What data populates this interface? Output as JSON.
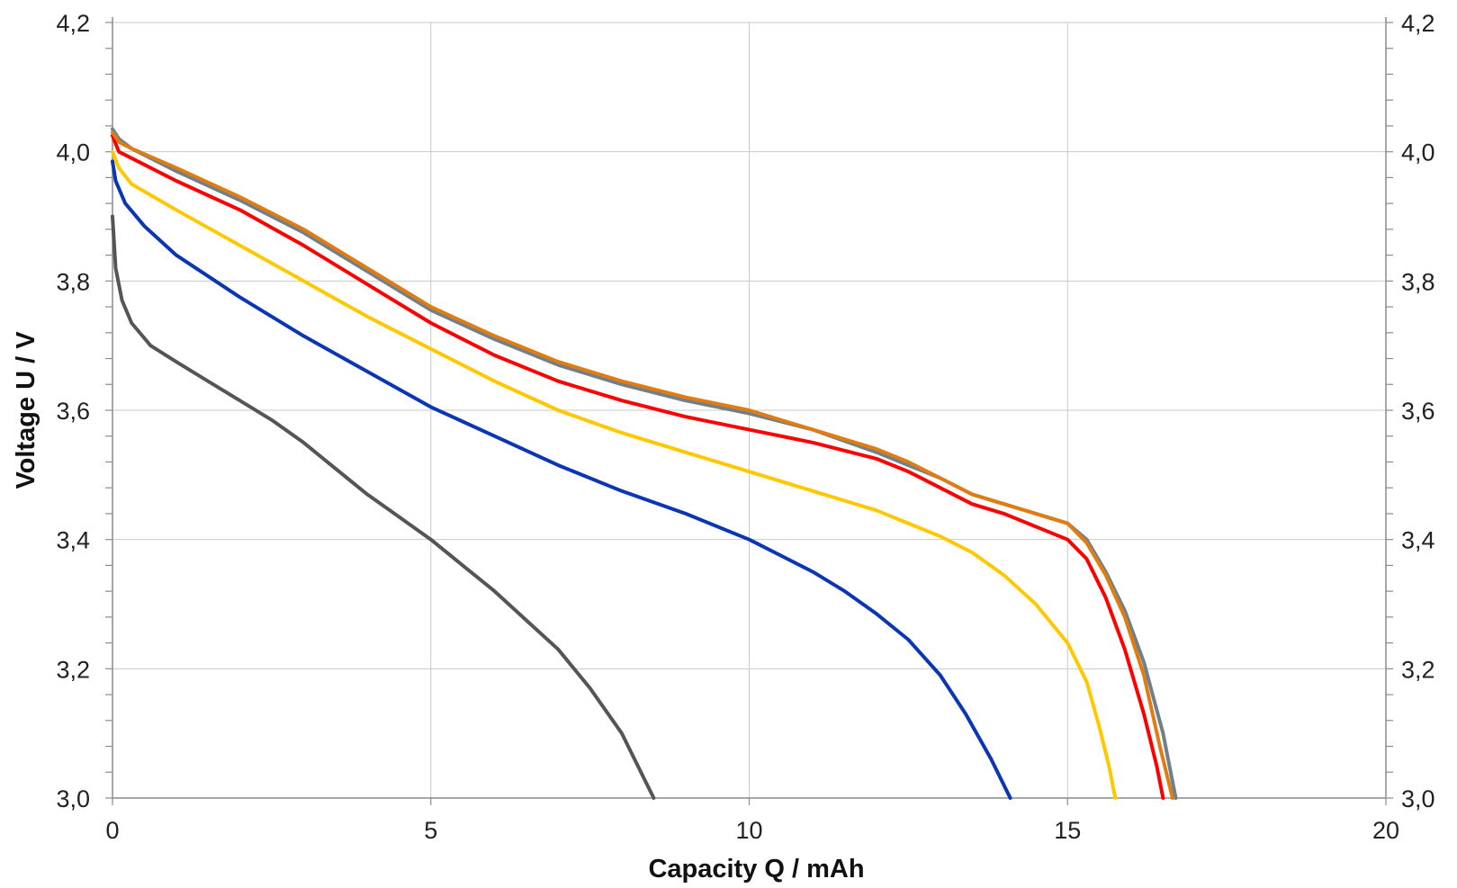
{
  "chart_data": {
    "type": "line",
    "title": "",
    "xlabel": "Capacity Q / mAh",
    "ylabel": "Voltage U / V",
    "xlim": [
      0,
      20
    ],
    "ylim": [
      3.0,
      4.2
    ],
    "x_ticks": [
      0,
      5,
      10,
      15,
      20
    ],
    "x_tick_labels": [
      "0",
      "5",
      "10",
      "15",
      "20"
    ],
    "y_ticks": [
      3.0,
      3.2,
      3.4,
      3.6,
      3.8,
      4.0,
      4.2
    ],
    "y_tick_labels": [
      "3,0",
      "3,2",
      "3,4",
      "3,6",
      "3,8",
      "4,0",
      "4,2"
    ],
    "y_minor_step": 0.04,
    "right_axis_mirrored": true,
    "grid": true,
    "legend": "none",
    "series": [
      {
        "color": "#555555",
        "points": [
          [
            0,
            3.9
          ],
          [
            0.05,
            3.82
          ],
          [
            0.15,
            3.77
          ],
          [
            0.3,
            3.735
          ],
          [
            0.6,
            3.7
          ],
          [
            1,
            3.675
          ],
          [
            1.5,
            3.645
          ],
          [
            2,
            3.615
          ],
          [
            2.5,
            3.585
          ],
          [
            3,
            3.55
          ],
          [
            3.5,
            3.51
          ],
          [
            4,
            3.47
          ],
          [
            4.5,
            3.435
          ],
          [
            5,
            3.4
          ],
          [
            5.5,
            3.36
          ],
          [
            6,
            3.32
          ],
          [
            6.5,
            3.275
          ],
          [
            7,
            3.23
          ],
          [
            7.5,
            3.17
          ],
          [
            8,
            3.1
          ],
          [
            8.3,
            3.04
          ],
          [
            8.5,
            3.0
          ]
        ]
      },
      {
        "color": "#0a36b5",
        "points": [
          [
            0,
            3.985
          ],
          [
            0.05,
            3.955
          ],
          [
            0.2,
            3.92
          ],
          [
            0.5,
            3.885
          ],
          [
            1,
            3.84
          ],
          [
            2,
            3.775
          ],
          [
            3,
            3.715
          ],
          [
            4,
            3.66
          ],
          [
            5,
            3.605
          ],
          [
            6,
            3.56
          ],
          [
            7,
            3.515
          ],
          [
            8,
            3.475
          ],
          [
            9,
            3.44
          ],
          [
            10,
            3.4
          ],
          [
            10.5,
            3.375
          ],
          [
            11,
            3.35
          ],
          [
            11.5,
            3.32
          ],
          [
            12,
            3.285
          ],
          [
            12.5,
            3.245
          ],
          [
            13,
            3.19
          ],
          [
            13.4,
            3.13
          ],
          [
            13.8,
            3.06
          ],
          [
            14.1,
            3.0
          ]
        ]
      },
      {
        "color": "#ffc800",
        "points": [
          [
            0,
            4.0
          ],
          [
            0.1,
            3.975
          ],
          [
            0.3,
            3.95
          ],
          [
            1,
            3.91
          ],
          [
            2,
            3.855
          ],
          [
            3,
            3.8
          ],
          [
            4,
            3.745
          ],
          [
            5,
            3.695
          ],
          [
            6,
            3.645
          ],
          [
            7,
            3.6
          ],
          [
            8,
            3.565
          ],
          [
            9,
            3.535
          ],
          [
            10,
            3.505
          ],
          [
            11,
            3.475
          ],
          [
            12,
            3.445
          ],
          [
            13,
            3.405
          ],
          [
            13.5,
            3.38
          ],
          [
            14,
            3.345
          ],
          [
            14.5,
            3.3
          ],
          [
            15,
            3.24
          ],
          [
            15.3,
            3.18
          ],
          [
            15.5,
            3.11
          ],
          [
            15.65,
            3.05
          ],
          [
            15.75,
            3.0
          ]
        ]
      },
      {
        "color": "#ff0000",
        "points": [
          [
            0,
            4.025
          ],
          [
            0.1,
            4.0
          ],
          [
            0.3,
            3.99
          ],
          [
            1,
            3.955
          ],
          [
            2,
            3.91
          ],
          [
            3,
            3.855
          ],
          [
            4,
            3.795
          ],
          [
            5,
            3.735
          ],
          [
            6,
            3.685
          ],
          [
            7,
            3.645
          ],
          [
            8,
            3.615
          ],
          [
            9,
            3.59
          ],
          [
            10,
            3.57
          ],
          [
            11,
            3.55
          ],
          [
            12,
            3.525
          ],
          [
            12.5,
            3.505
          ],
          [
            13,
            3.48
          ],
          [
            13.5,
            3.455
          ],
          [
            14,
            3.44
          ],
          [
            14.5,
            3.42
          ],
          [
            15,
            3.4
          ],
          [
            15.3,
            3.37
          ],
          [
            15.6,
            3.31
          ],
          [
            15.9,
            3.23
          ],
          [
            16.2,
            3.13
          ],
          [
            16.4,
            3.05
          ],
          [
            16.5,
            3.0
          ]
        ]
      },
      {
        "color": "#6e7f8d",
        "points": [
          [
            0,
            4.035
          ],
          [
            0.1,
            4.02
          ],
          [
            0.3,
            4.005
          ],
          [
            1,
            3.97
          ],
          [
            2,
            3.925
          ],
          [
            3,
            3.875
          ],
          [
            4,
            3.815
          ],
          [
            5,
            3.755
          ],
          [
            6,
            3.71
          ],
          [
            7,
            3.67
          ],
          [
            8,
            3.64
          ],
          [
            9,
            3.615
          ],
          [
            10,
            3.595
          ],
          [
            11,
            3.57
          ],
          [
            12,
            3.535
          ],
          [
            12.5,
            3.515
          ],
          [
            13,
            3.495
          ],
          [
            13.5,
            3.47
          ],
          [
            14,
            3.455
          ],
          [
            14.5,
            3.44
          ],
          [
            15,
            3.425
          ],
          [
            15.3,
            3.4
          ],
          [
            15.6,
            3.35
          ],
          [
            15.9,
            3.29
          ],
          [
            16.2,
            3.21
          ],
          [
            16.5,
            3.1
          ],
          [
            16.7,
            3.0
          ]
        ]
      },
      {
        "color": "#e07c10",
        "points": [
          [
            0,
            4.03
          ],
          [
            0.1,
            4.015
          ],
          [
            0.3,
            4.005
          ],
          [
            1,
            3.975
          ],
          [
            2,
            3.93
          ],
          [
            3,
            3.88
          ],
          [
            4,
            3.82
          ],
          [
            5,
            3.76
          ],
          [
            6,
            3.715
          ],
          [
            7,
            3.675
          ],
          [
            8,
            3.645
          ],
          [
            9,
            3.62
          ],
          [
            10,
            3.6
          ],
          [
            11,
            3.57
          ],
          [
            12,
            3.54
          ],
          [
            12.5,
            3.52
          ],
          [
            13,
            3.495
          ],
          [
            13.5,
            3.47
          ],
          [
            14,
            3.455
          ],
          [
            14.5,
            3.44
          ],
          [
            15,
            3.425
          ],
          [
            15.3,
            3.395
          ],
          [
            15.6,
            3.345
          ],
          [
            15.9,
            3.28
          ],
          [
            16.2,
            3.19
          ],
          [
            16.45,
            3.08
          ],
          [
            16.65,
            3.0
          ]
        ]
      }
    ]
  }
}
